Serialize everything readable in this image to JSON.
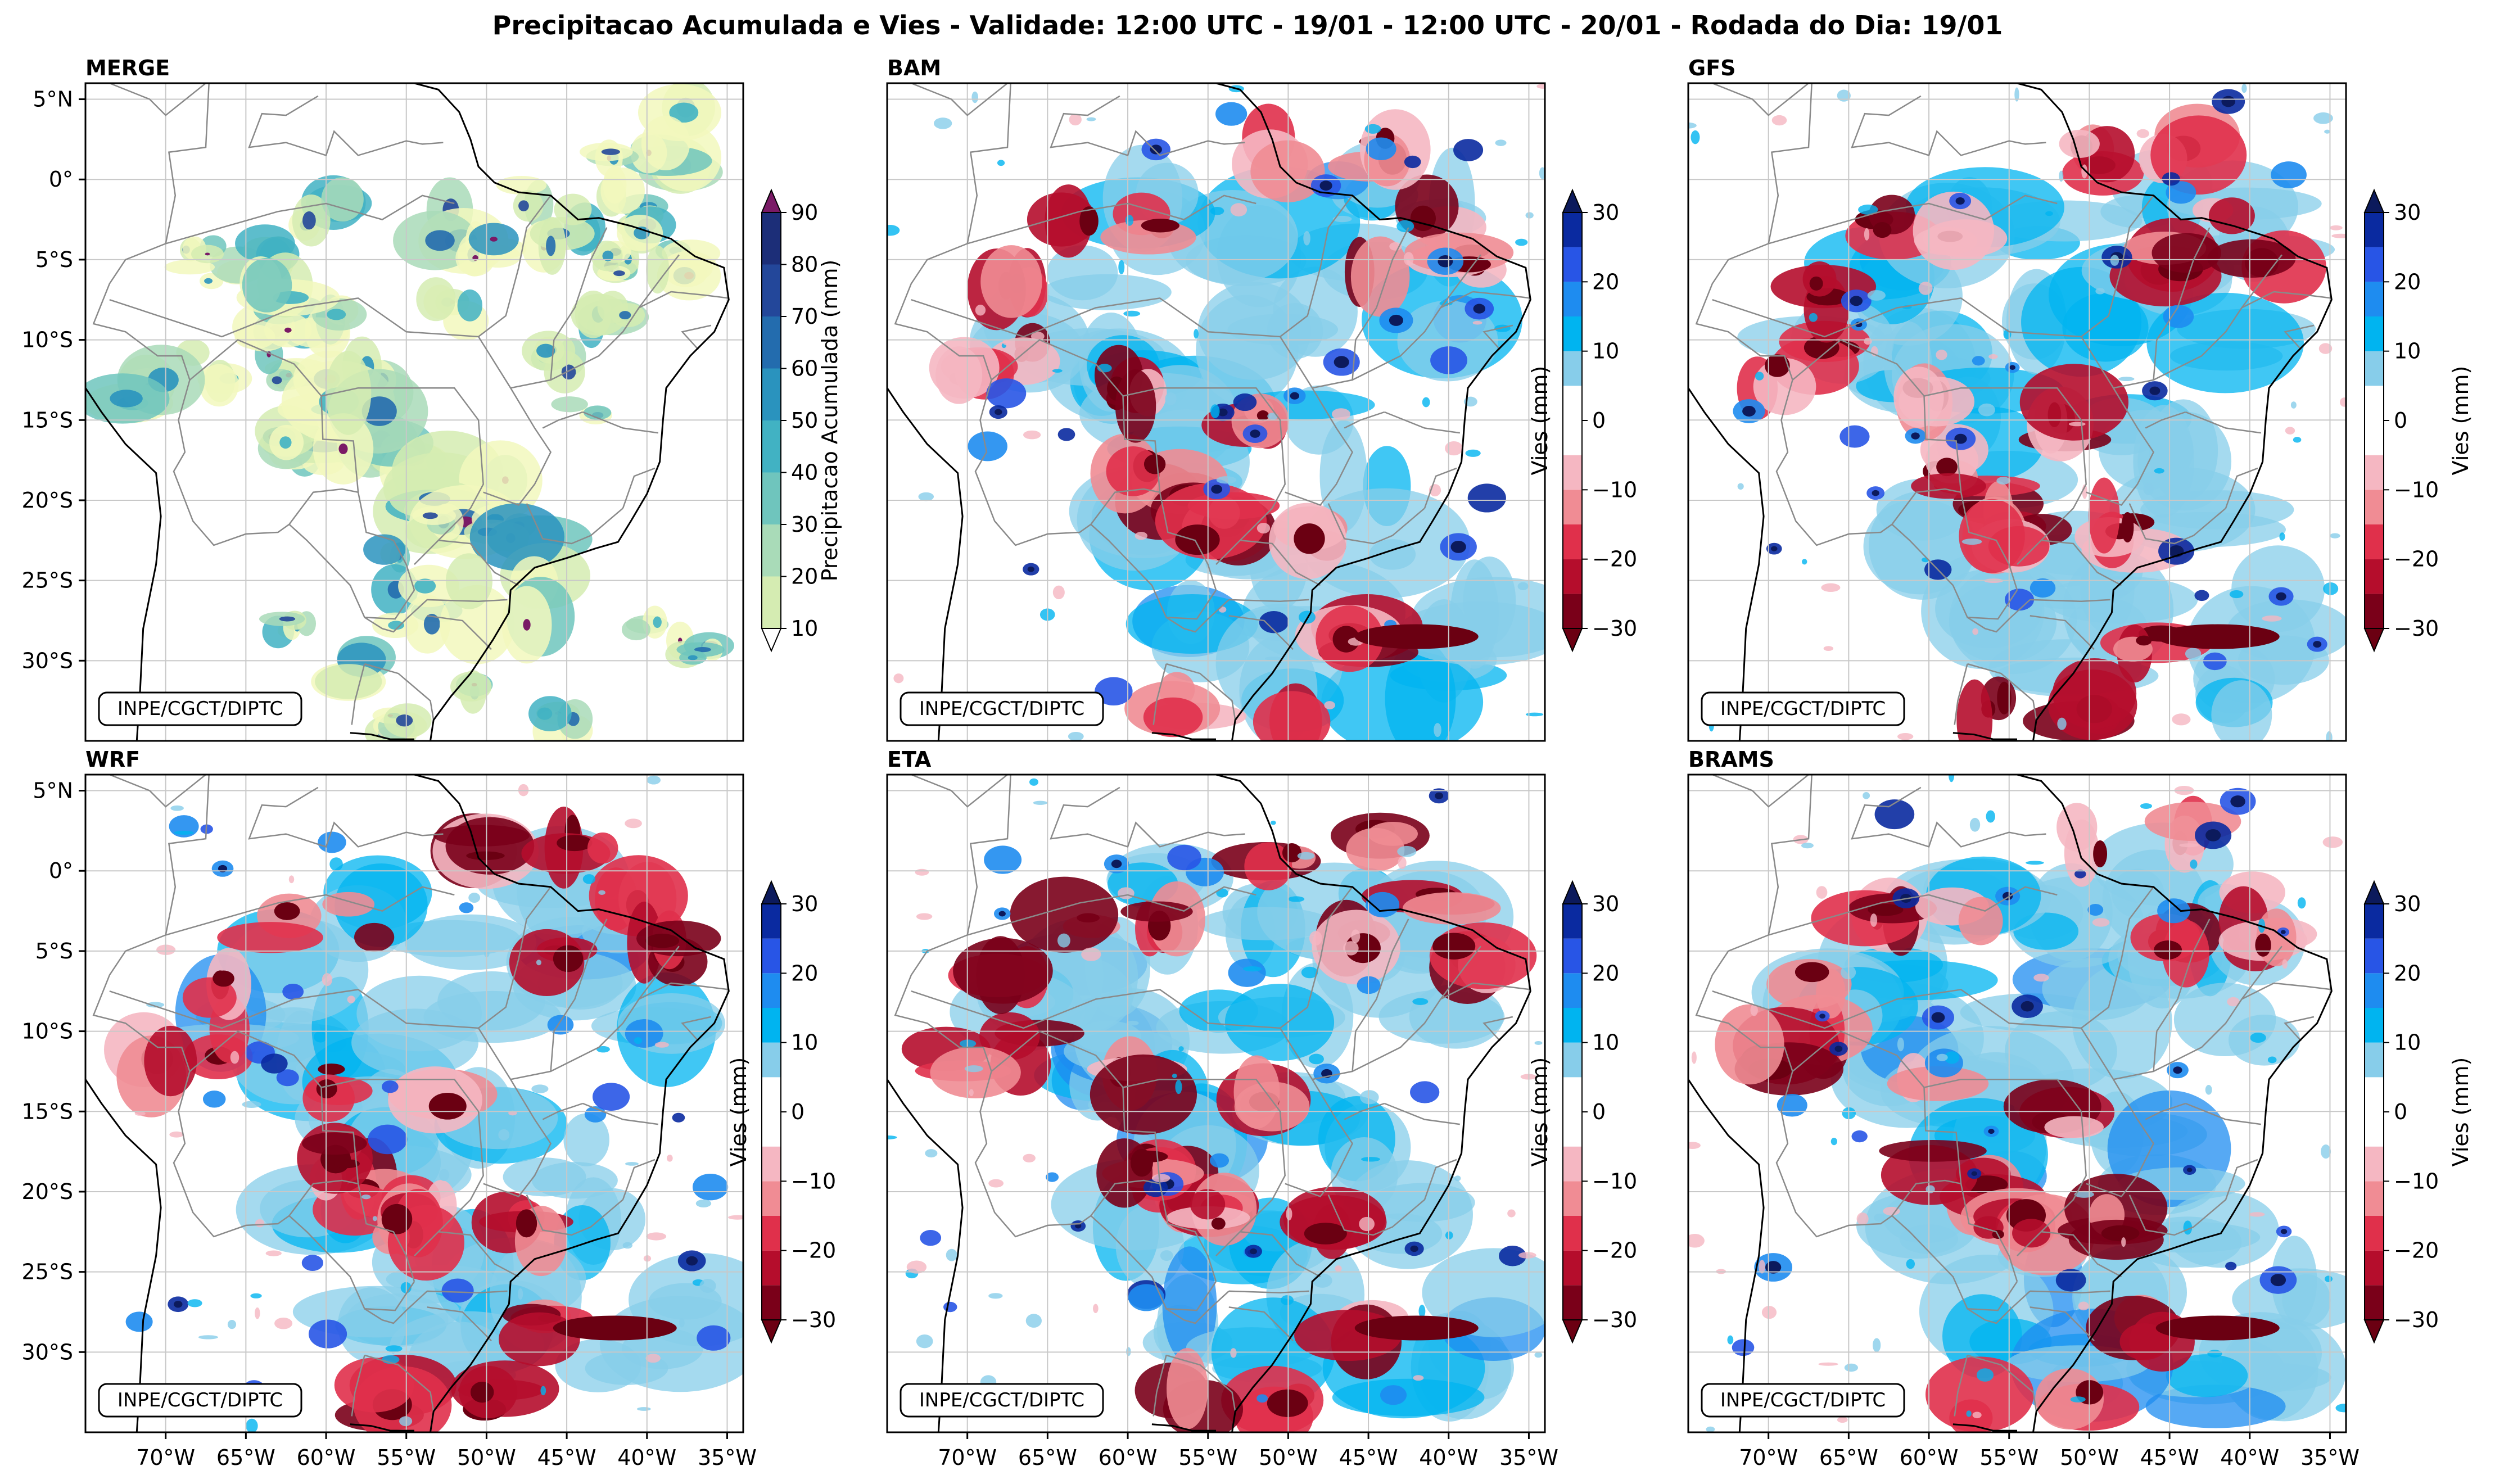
{
  "figure": {
    "title": "Precipitacao Acumulada e Vies - Validade: 12:00 UTC - 19/01 - 12:00 UTC - 20/01 - Rodada do Dia: 19/01",
    "credit": "INPE/CGCT/DIPTC",
    "lon_ticks": [
      "70°W",
      "65°W",
      "60°W",
      "55°W",
      "50°W",
      "45°W",
      "40°W",
      "35°W"
    ],
    "lat_ticks": [
      "5°N",
      "0°",
      "5°S",
      "10°S",
      "15°S",
      "20°S",
      "25°S",
      "30°S"
    ]
  },
  "colors": {
    "precip_scale": [
      "#f2f8bd",
      "#d5ecb2",
      "#a9dbb8",
      "#6fc5bd",
      "#41b2c3",
      "#2a93be",
      "#236cae",
      "#23479a",
      "#1c2e78",
      "#0d1a4c"
    ],
    "precip_over": "#7a1a66",
    "bias_scale": [
      "#7a0019",
      "#b50d2c",
      "#e0304b",
      "#f08c94",
      "#f5b7c2",
      "#ffffff",
      "#ffffff",
      "#87cdea",
      "#00b4f0",
      "#1e8cf0",
      "#2855e6",
      "#0a2aa0"
    ],
    "bias_under": "#6b0012",
    "bias_over": "#0c1a5c",
    "coast": "#000000",
    "border": "#8a8a8a",
    "grid": "#c8c8c8"
  },
  "panels": [
    {
      "label": "MERGE",
      "colorbar_label": "Precipitacao Acumulada (mm)",
      "colorbar_ticks": [
        "90",
        "80",
        "70",
        "60",
        "50",
        "40",
        "30",
        "20",
        "10"
      ]
    },
    {
      "label": "BAM",
      "colorbar_label": "Vies (mm)",
      "colorbar_ticks": [
        "30",
        "20",
        "10",
        "0",
        "−10",
        "−20",
        "−30"
      ]
    },
    {
      "label": "GFS",
      "colorbar_label": "Vies (mm)",
      "colorbar_ticks": [
        "30",
        "20",
        "10",
        "0",
        "−10",
        "−20",
        "−30"
      ]
    },
    {
      "label": "WRF",
      "colorbar_label": "Vies (mm)",
      "colorbar_ticks": [
        "30",
        "20",
        "10",
        "0",
        "−10",
        "−20",
        "−30"
      ]
    },
    {
      "label": "ETA",
      "colorbar_label": "Vies (mm)",
      "colorbar_ticks": [
        "30",
        "20",
        "10",
        "0",
        "−10",
        "−20",
        "−30"
      ]
    },
    {
      "label": "BRAMS",
      "colorbar_label": "Vies (mm)",
      "colorbar_ticks": [
        "30",
        "20",
        "10",
        "0",
        "−10",
        "−20",
        "−30"
      ]
    }
  ]
}
